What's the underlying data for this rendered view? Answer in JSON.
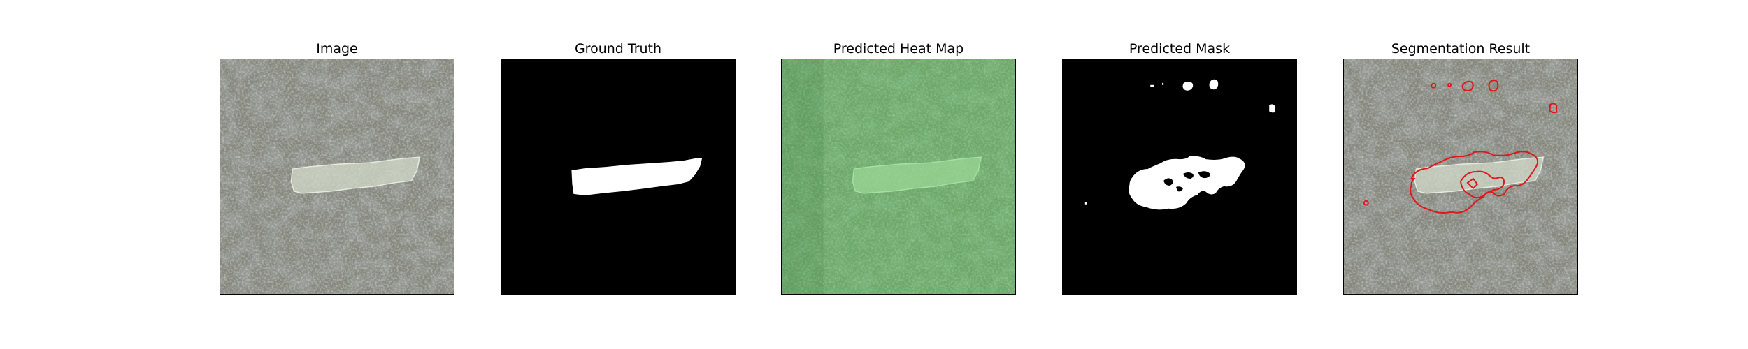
{
  "panels": [
    {
      "title": "Image"
    },
    {
      "title": "Ground Truth"
    },
    {
      "title": "Predicted Heat Map"
    },
    {
      "title": "Predicted Mask"
    },
    {
      "title": "Segmentation Result"
    }
  ],
  "colors": {
    "texture_base": "#7d7f76",
    "texture_dark": "#2f312e",
    "texture_light": "#a9ab9f",
    "defect_patch": "#c9d2bf",
    "mask_background": "#000000",
    "mask_foreground": "#ffffff",
    "heatmap_tint": "#5fbf5f",
    "contour": "#e0161b"
  }
}
